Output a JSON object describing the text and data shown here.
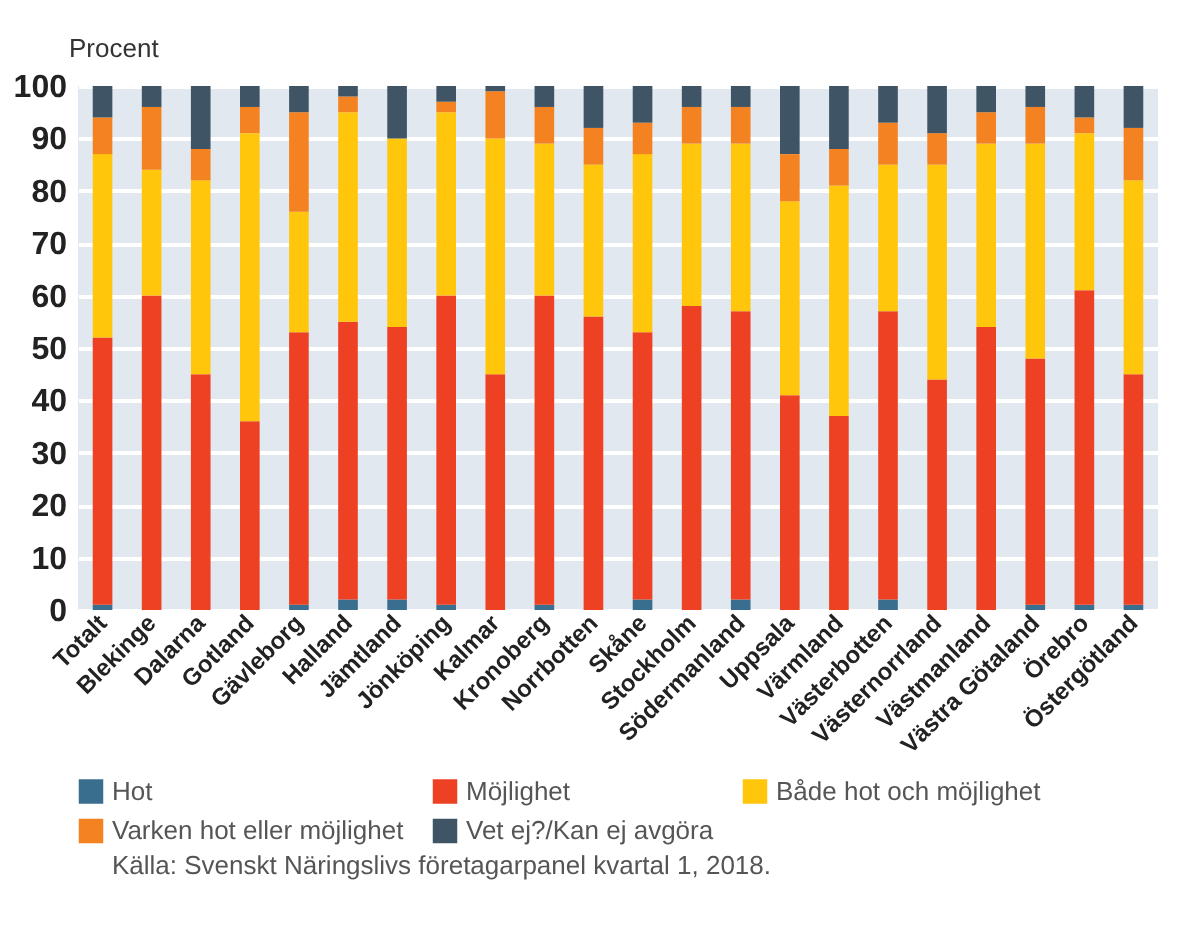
{
  "chart_data": {
    "type": "bar",
    "stacked": true,
    "ylabel": "Procent",
    "categories": [
      "Totalt",
      "Blekinge",
      "Dalarna",
      "Gotland",
      "Gävleborg",
      "Halland",
      "Jämtland",
      "Jönköping",
      "Kalmar",
      "Kronoberg",
      "Norrbotten",
      "Skåne",
      "Stockholm",
      "Södermanland",
      "Uppsala",
      "Värmland",
      "Västerbotten",
      "Västernorrland",
      "Västmanland",
      "Västra Götaland",
      "Örebro",
      "Östergötland"
    ],
    "series": [
      {
        "name": "Hot",
        "color": "#3a6e8f",
        "values": [
          1,
          0,
          0,
          0,
          1,
          2,
          2,
          1,
          0,
          1,
          0,
          2,
          0,
          2,
          0,
          0,
          2,
          0,
          0,
          1,
          1,
          1
        ]
      },
      {
        "name": "Möjlighet",
        "color": "#ee4023",
        "values": [
          51,
          60,
          45,
          36,
          52,
          53,
          52,
          59,
          45,
          59,
          56,
          51,
          58,
          55,
          41,
          37,
          55,
          44,
          54,
          47,
          60,
          44
        ]
      },
      {
        "name": "Både hot och möjlighet",
        "color": "#ffc60b",
        "values": [
          35,
          24,
          37,
          55,
          23,
          40,
          36,
          35,
          45,
          29,
          29,
          34,
          31,
          32,
          37,
          44,
          28,
          41,
          35,
          41,
          30,
          37
        ]
      },
      {
        "name": "Varken hot eller möjlighet",
        "color": "#f58220",
        "values": [
          7,
          12,
          6,
          5,
          19,
          3,
          0,
          2,
          9,
          7,
          7,
          6,
          7,
          7,
          9,
          7,
          8,
          6,
          6,
          7,
          3,
          10
        ]
      },
      {
        "name": "Vet ej?/Kan ej avgöra",
        "color": "#3f5566",
        "values": [
          6,
          4,
          12,
          4,
          5,
          2,
          10,
          3,
          1,
          4,
          8,
          7,
          4,
          4,
          13,
          12,
          7,
          9,
          5,
          4,
          6,
          8
        ]
      }
    ],
    "ylim": [
      0,
      100
    ],
    "yticks": [
      0,
      10,
      20,
      30,
      40,
      50,
      60,
      70,
      80,
      90,
      100
    ],
    "grid": "y",
    "legend": "bottom",
    "annotations": [
      "Källa: Svenskt Näringslivs företagarpanel kvartal 1, 2018."
    ]
  }
}
